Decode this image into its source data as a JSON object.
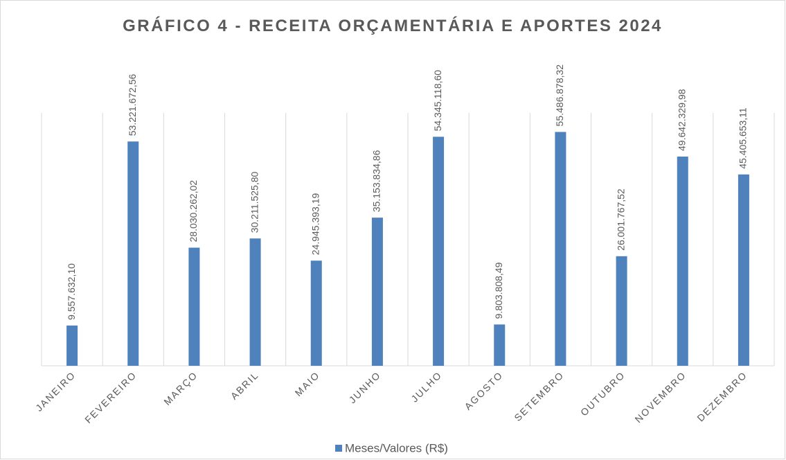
{
  "chart_data": {
    "type": "bar",
    "title": "GRÁFICO 4 - RECEITA ORÇAMENTÁRIA E APORTES 2024",
    "categories": [
      "JANEIRO",
      "FEVEREIRO",
      "MARÇO",
      "ABRIL",
      "MAIO",
      "JUNHO",
      "JULHO",
      "AGOSTO",
      "SETEMBRO",
      "OUTUBRO",
      "NOVEMBRO",
      "DEZEMBRO"
    ],
    "series": [
      {
        "name": "Meses/Valores (R$)",
        "color": "#4f81bd",
        "values": [
          9557632.1,
          53221672.56,
          28030262.02,
          30211525.8,
          24945393.19,
          35153834.86,
          54345118.6,
          9803808.49,
          55486878.32,
          26001767.52,
          49642329.98,
          45405653.11
        ],
        "value_labels": [
          "9.557.632,10",
          "53.221.672,56",
          "28.030.262,02",
          "30.211.525,80",
          "24.945.393,19",
          "35.153.834,86",
          "54.345.118,60",
          "9.803.808,49",
          "55.486.878,32",
          "26.001.767,52",
          "49.642.329,98",
          "45.405.653,11"
        ]
      }
    ],
    "ylim": [
      0,
      60000000
    ],
    "legend": "bottom"
  }
}
